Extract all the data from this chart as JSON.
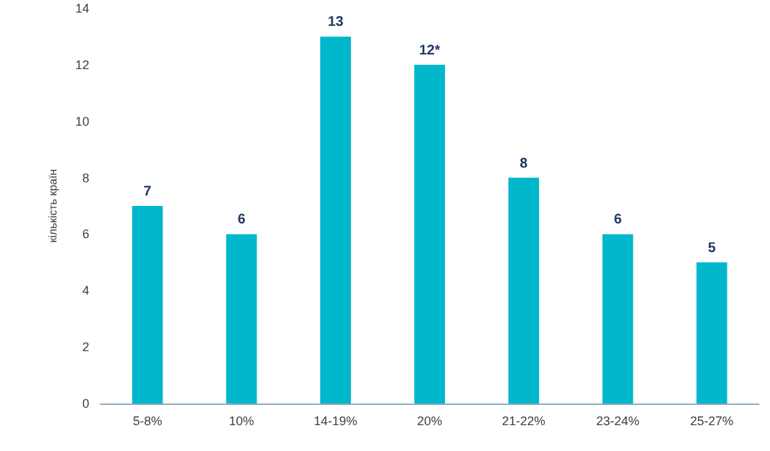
{
  "chart_data": {
    "type": "bar",
    "ylabel": "кількість країн",
    "categories": [
      "5-8%",
      "10%",
      "14-19%",
      "20%",
      "21-22%",
      "23-24%",
      "25-27%"
    ],
    "values": [
      7,
      6,
      13,
      12,
      8,
      6,
      5
    ],
    "value_labels": [
      "7",
      "6",
      "13",
      "12*",
      "8",
      "6",
      "5"
    ],
    "color": "#00b7cc",
    "ylim": [
      0,
      14
    ],
    "yticks": [
      0,
      2,
      4,
      6,
      8,
      10,
      12,
      14
    ]
  }
}
